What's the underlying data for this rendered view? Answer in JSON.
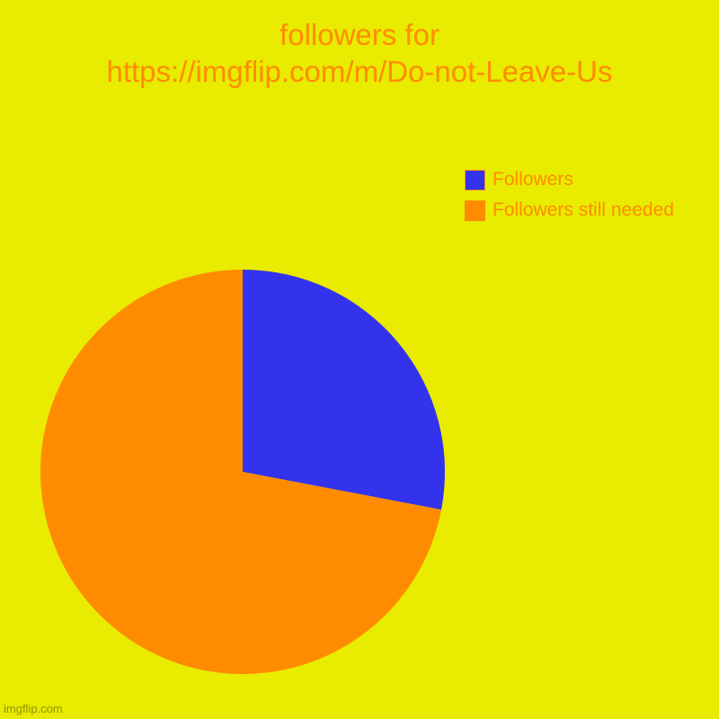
{
  "chart": {
    "type": "pie",
    "title_line1": "followers for",
    "title_line2": "https://imgflip.com/m/Do-not-Leave-Us",
    "title_fontsize": 33,
    "title_color": "#ff8c00",
    "background_color": "#e9eb00",
    "legend": {
      "fontsize": 21,
      "label_color": "#ff8c00",
      "swatch_border_color": "#ff8c00",
      "items": [
        {
          "label": "Followers",
          "color": "#3333ee"
        },
        {
          "label": "Followers still needed",
          "color": "#ff8c00"
        }
      ]
    },
    "pie": {
      "diameter": 450,
      "slices": [
        {
          "label": "Followers",
          "value": 28,
          "color": "#3333ee"
        },
        {
          "label": "Followers still needed",
          "value": 72,
          "color": "#ff8c00"
        }
      ],
      "start_angle_deg": 0
    }
  },
  "watermark": "imgflip.com"
}
